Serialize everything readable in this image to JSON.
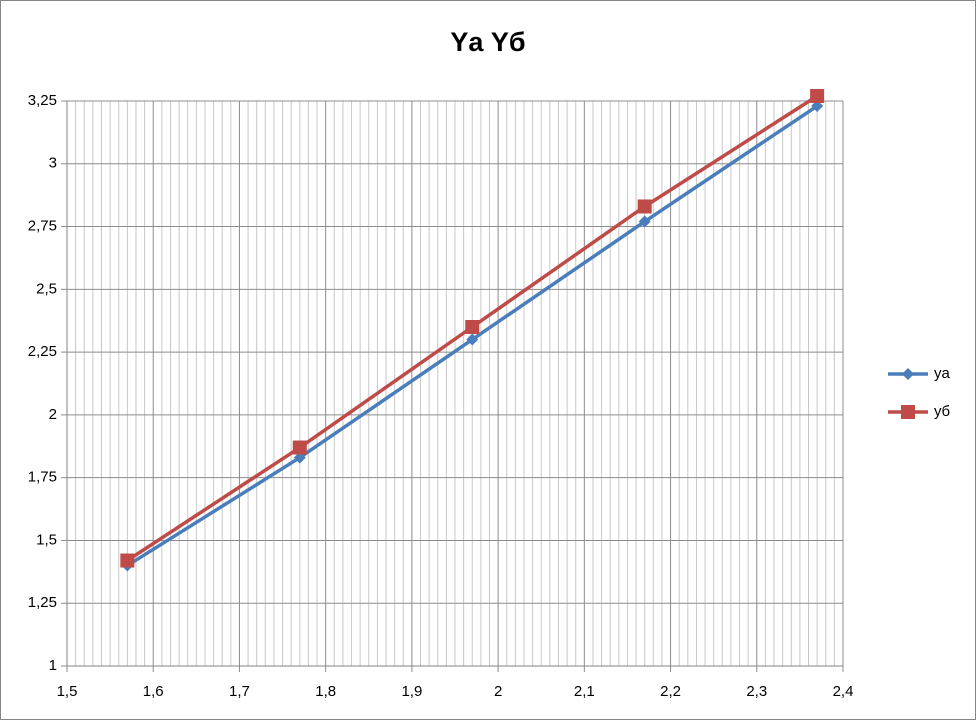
{
  "chart_data": {
    "type": "line",
    "title": "Yа Yб",
    "x": [
      1.57,
      1.77,
      1.97,
      2.17,
      2.37
    ],
    "series": [
      {
        "name": "yа",
        "color": "#4a7ebb",
        "marker": "diamond",
        "values": [
          1.4,
          1.83,
          2.3,
          2.77,
          3.23
        ]
      },
      {
        "name": "yб",
        "color": "#be4b48",
        "marker": "square",
        "values": [
          1.42,
          1.87,
          2.35,
          2.83,
          3.27
        ]
      }
    ],
    "xlim": [
      1.5,
      2.4
    ],
    "xticks": [
      {
        "value": 1.5,
        "label": "1,5"
      },
      {
        "value": 1.6,
        "label": "1,6"
      },
      {
        "value": 1.7,
        "label": "1,7"
      },
      {
        "value": 1.8,
        "label": "1,8"
      },
      {
        "value": 1.9,
        "label": "1,9"
      },
      2,
      {
        "value": 2.1,
        "label": "2,1"
      },
      {
        "value": 2.2,
        "label": "2,2"
      },
      {
        "value": 2.3,
        "label": "2,3"
      },
      {
        "value": 2.4,
        "label": "2,4"
      }
    ],
    "x_minor_divisions": 10,
    "ylim": [
      1,
      3.25
    ],
    "yticks": [
      1,
      {
        "value": 1.25,
        "label": "1,25"
      },
      {
        "value": 1.5,
        "label": "1,5"
      },
      {
        "value": 1.75,
        "label": "1,75"
      },
      2,
      {
        "value": 2.25,
        "label": "2,25"
      },
      {
        "value": 2.5,
        "label": "2,5"
      },
      {
        "value": 2.75,
        "label": "2,75"
      },
      3,
      {
        "value": 3.25,
        "label": "3,25"
      }
    ],
    "grid": true,
    "legend": "right"
  }
}
